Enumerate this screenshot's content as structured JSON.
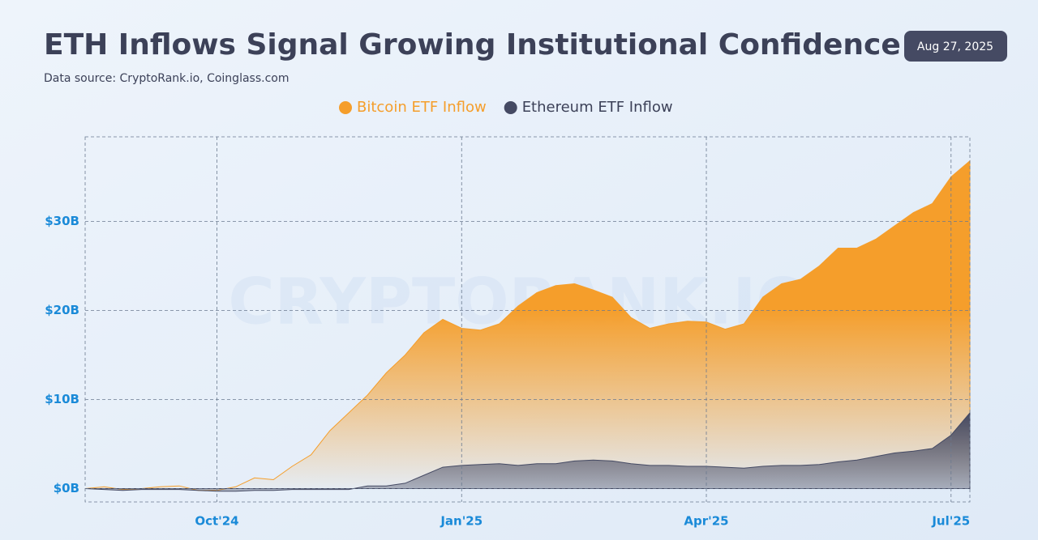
{
  "chart_data": {
    "type": "area",
    "title": "ETH Inflows Signal Growing Institutional Confidence",
    "subtitle": "Data source: CryptoRank.io, Coinglass.com",
    "annotation": "Aug 27, 2025",
    "watermark": "CRYPTORANK.IO",
    "categories": [
      null,
      null,
      null,
      null,
      null,
      null,
      null,
      "Oct'24",
      null,
      null,
      null,
      null,
      null,
      null,
      null,
      null,
      null,
      null,
      null,
      null,
      "Jan'25",
      null,
      null,
      null,
      null,
      null,
      null,
      null,
      null,
      null,
      null,
      null,
      null,
      "Apr'25",
      null,
      null,
      null,
      null,
      null,
      null,
      null,
      null,
      null,
      null,
      null,
      null,
      "Jul'25",
      null
    ],
    "series": [
      {
        "name": "Bitcoin ETF Inflow",
        "color": "#f59e2b",
        "values": [
          0,
          0.2,
          -0.1,
          0,
          0.2,
          0.3,
          -0.2,
          -0.2,
          0.2,
          1.2,
          1.0,
          2.5,
          3.8,
          6.5,
          8.5,
          10.5,
          13.0,
          15.0,
          17.5,
          19.0,
          18.0,
          17.8,
          18.5,
          20.5,
          22.0,
          22.8,
          23.0,
          22.3,
          21.5,
          19.2,
          18.0,
          18.5,
          18.8,
          18.7,
          17.9,
          18.5,
          21.5,
          23.0,
          23.5,
          25.0,
          27.0,
          27.0,
          28.0,
          29.5,
          31.0,
          32.0,
          35.0,
          36.8
        ]
      },
      {
        "name": "Ethereum ETF Inflow",
        "color": "#454a63",
        "values": [
          0,
          -0.1,
          -0.2,
          -0.1,
          -0.1,
          -0.1,
          -0.2,
          -0.3,
          -0.3,
          -0.2,
          -0.2,
          -0.1,
          -0.1,
          -0.1,
          -0.1,
          0.3,
          0.3,
          0.6,
          1.5,
          2.4,
          2.6,
          2.7,
          2.8,
          2.6,
          2.8,
          2.8,
          3.1,
          3.2,
          3.1,
          2.8,
          2.6,
          2.6,
          2.5,
          2.5,
          2.4,
          2.3,
          2.5,
          2.6,
          2.6,
          2.7,
          3.0,
          3.2,
          3.6,
          4.0,
          4.2,
          4.5,
          6.0,
          8.5
        ]
      }
    ],
    "ylim": [
      -1.5,
      39.5
    ],
    "yticks": [
      {
        "value": 0,
        "label": "$0B"
      },
      {
        "value": 10,
        "label": "$10B"
      },
      {
        "value": 20,
        "label": "$20B"
      },
      {
        "value": 30,
        "label": "$30B"
      }
    ],
    "grid": true,
    "legend": "top"
  }
}
